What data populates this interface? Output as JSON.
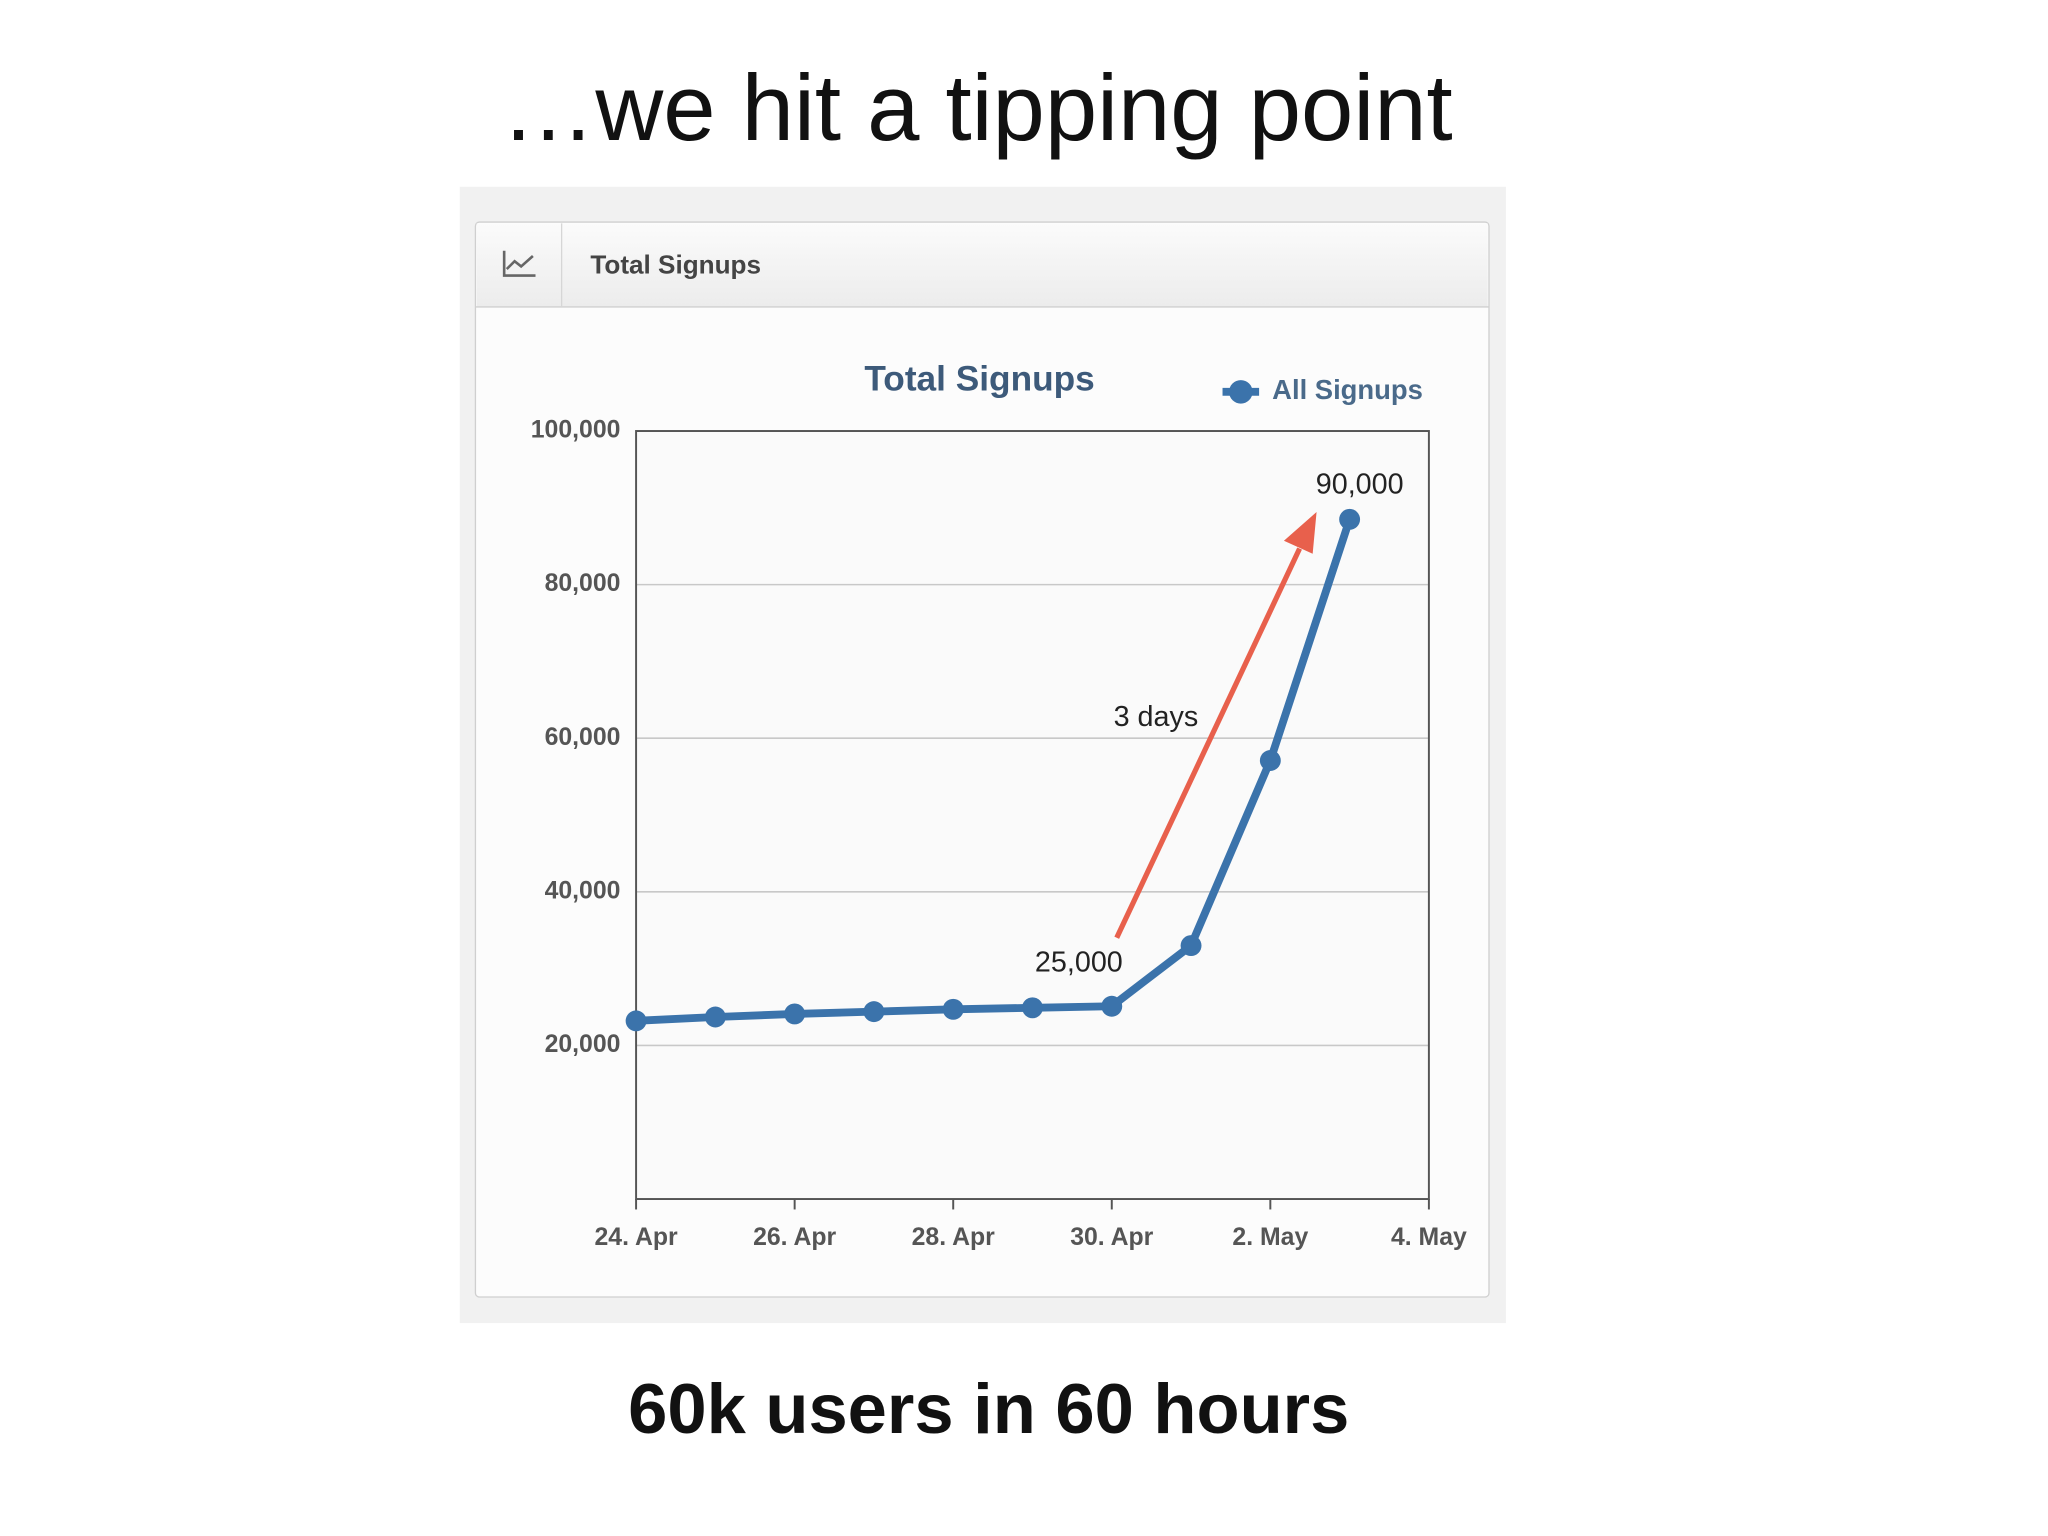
{
  "slide": {
    "title": "…we hit a tipping point",
    "caption": "60k users in 60 hours"
  },
  "chart_data": {
    "type": "line",
    "panel_title": "Total Signups",
    "title": "Total Signups",
    "x": [
      0,
      1,
      2,
      3,
      4,
      5,
      6,
      7,
      8,
      9
    ],
    "xlim": [
      0,
      10
    ],
    "xticks": [
      {
        "value": 0,
        "label": "24. Apr"
      },
      {
        "value": 2,
        "label": "26. Apr"
      },
      {
        "value": 4,
        "label": "28. Apr"
      },
      {
        "value": 6,
        "label": "30. Apr"
      },
      {
        "value": 8,
        "label": "2. May"
      },
      {
        "value": 10,
        "label": "4. May"
      }
    ],
    "ylim": [
      0,
      100000
    ],
    "yticks": [
      {
        "value": 20000,
        "label": "20,000"
      },
      {
        "value": 40000,
        "label": "40,000"
      },
      {
        "value": 60000,
        "label": "60,000"
      },
      {
        "value": 80000,
        "label": "80,000"
      },
      {
        "value": 100000,
        "label": "100,000"
      }
    ],
    "grid": true,
    "series": [
      {
        "name": "All Signups",
        "color": "#3b73ab",
        "values": [
          23200,
          23700,
          24100,
          24400,
          24700,
          24900,
          25100,
          33000,
          57100,
          88500
        ]
      }
    ],
    "annotations": [
      "25,000",
      "3 days",
      "90,000"
    ]
  }
}
